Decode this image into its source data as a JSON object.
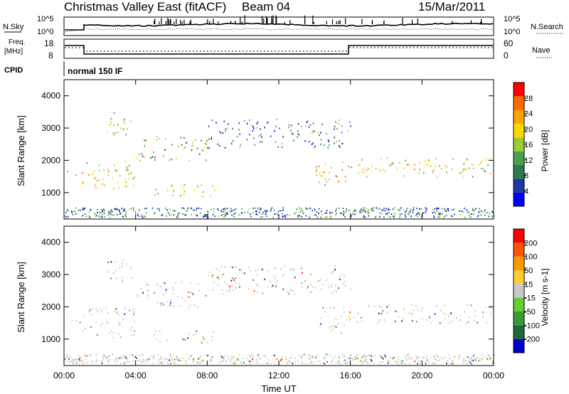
{
  "header": {
    "title": "Christmas Valley East (fitACF)",
    "beam": "Beam 04",
    "date": "15/Mar/2011"
  },
  "params": {
    "nsky_label": "N.Sky",
    "nsearch_label": "N.Search",
    "freq_label": "Freq.",
    "freq_unit": "[MHz]",
    "nave_label": "Nave",
    "cpid_label": "CPID",
    "cpid_value": "normal 150 IF",
    "nsky_ticks": [
      "10^5",
      "10^0"
    ],
    "nsearch_ticks": [
      "10^5",
      "10^0"
    ],
    "freq_ticks": [
      "18",
      "8"
    ],
    "nave_ticks": [
      "60",
      "0"
    ]
  },
  "chart_data": [
    {
      "type": "heatmap",
      "panel": "power",
      "ylabel": "Slant Range [km]",
      "yticks": [
        "4000",
        "3000",
        "2000",
        "1000"
      ],
      "ylim": [
        180,
        4500
      ],
      "colorbar_label": "Power [dB]",
      "colorbar_ticks": [
        "28",
        "24",
        "20",
        "16",
        "12",
        "8",
        "4"
      ],
      "colors": [
        "#0000ff",
        "#1a3aa0",
        "#2a7a50",
        "#4aa050",
        "#9acd32",
        "#ffd700",
        "#ffa500",
        "#ff6a00",
        "#ff0000"
      ],
      "features": [
        {
          "t": [
            0,
            1
          ],
          "range": [
            1500,
            1700
          ],
          "power": 22
        },
        {
          "t": [
            1,
            4
          ],
          "range": [
            1050,
            2000
          ],
          "power": 18
        },
        {
          "t": [
            2.2,
            3.8
          ],
          "range": [
            2800,
            3500
          ],
          "power": 14
        },
        {
          "t": [
            4,
            8
          ],
          "range": [
            2000,
            2800
          ],
          "power": 10
        },
        {
          "t": [
            5,
            8.5
          ],
          "range": [
            900,
            1300
          ],
          "power": 20
        },
        {
          "t": [
            8,
            16
          ],
          "range": [
            2400,
            3300
          ],
          "power": 6
        },
        {
          "t": [
            14,
            16
          ],
          "range": [
            1200,
            2000
          ],
          "power": 20
        },
        {
          "t": [
            16,
            24
          ],
          "range": [
            1500,
            2100
          ],
          "power": 20
        }
      ]
    },
    {
      "type": "heatmap",
      "panel": "velocity",
      "ylabel": "Slant Range [km]",
      "yticks": [
        "4000",
        "3000",
        "2000",
        "1000"
      ],
      "ylim": [
        180,
        4500
      ],
      "colorbar_label": "Velocity [m s-1]",
      "colorbar_ticks": [
        "200",
        "100",
        "50",
        "15",
        "-15",
        "-50",
        "-100",
        "-200"
      ],
      "colors": [
        "#0000cc",
        "#1c6a3a",
        "#3a9a3a",
        "#66cc33",
        "#c8c8c8",
        "#ffcc33",
        "#ff9900",
        "#ff5500",
        "#ff0000"
      ],
      "xticks": [
        "00:00",
        "04:00",
        "08:00",
        "12:00",
        "16:00",
        "20:00",
        "00:00"
      ],
      "xlabel": "Time UT"
    }
  ]
}
